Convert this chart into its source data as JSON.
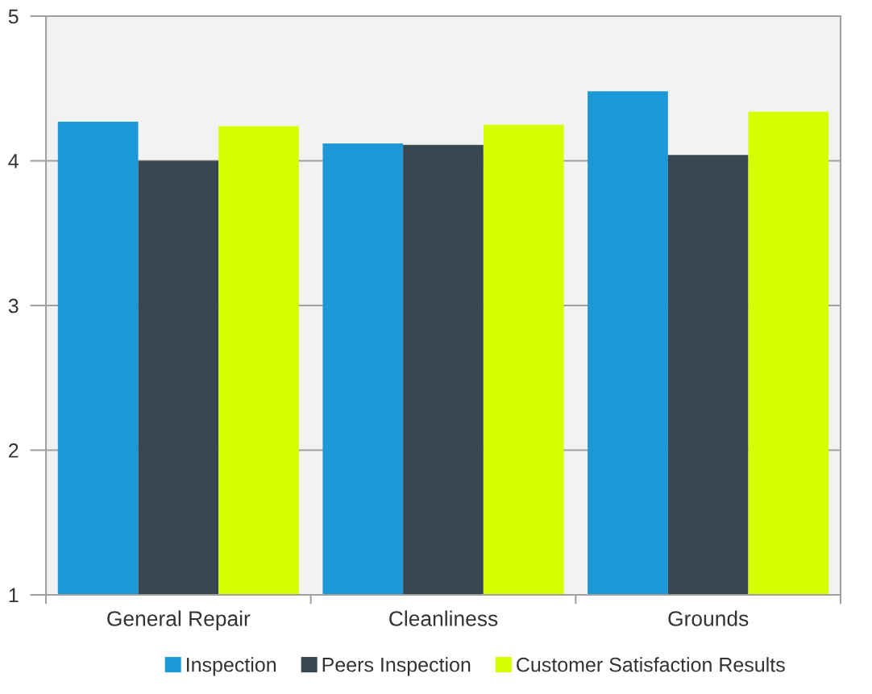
{
  "chart_data": {
    "type": "bar",
    "categories": [
      "General Repair",
      "Cleanliness",
      "Grounds"
    ],
    "series": [
      {
        "name": "Inspection",
        "color": "#1b98d5",
        "values": [
          4.27,
          4.12,
          4.48
        ]
      },
      {
        "name": "Peers Inspection",
        "color": "#37474f",
        "values": [
          4.0,
          4.11,
          4.04
        ]
      },
      {
        "name": "Customer Satisfaction Results",
        "color": "#d5ff00",
        "values": [
          4.24,
          4.25,
          4.34
        ]
      }
    ],
    "ylim": [
      1,
      5
    ],
    "yticks": [
      1,
      2,
      3,
      4,
      5
    ],
    "grid": "y",
    "legend": "bottom"
  }
}
